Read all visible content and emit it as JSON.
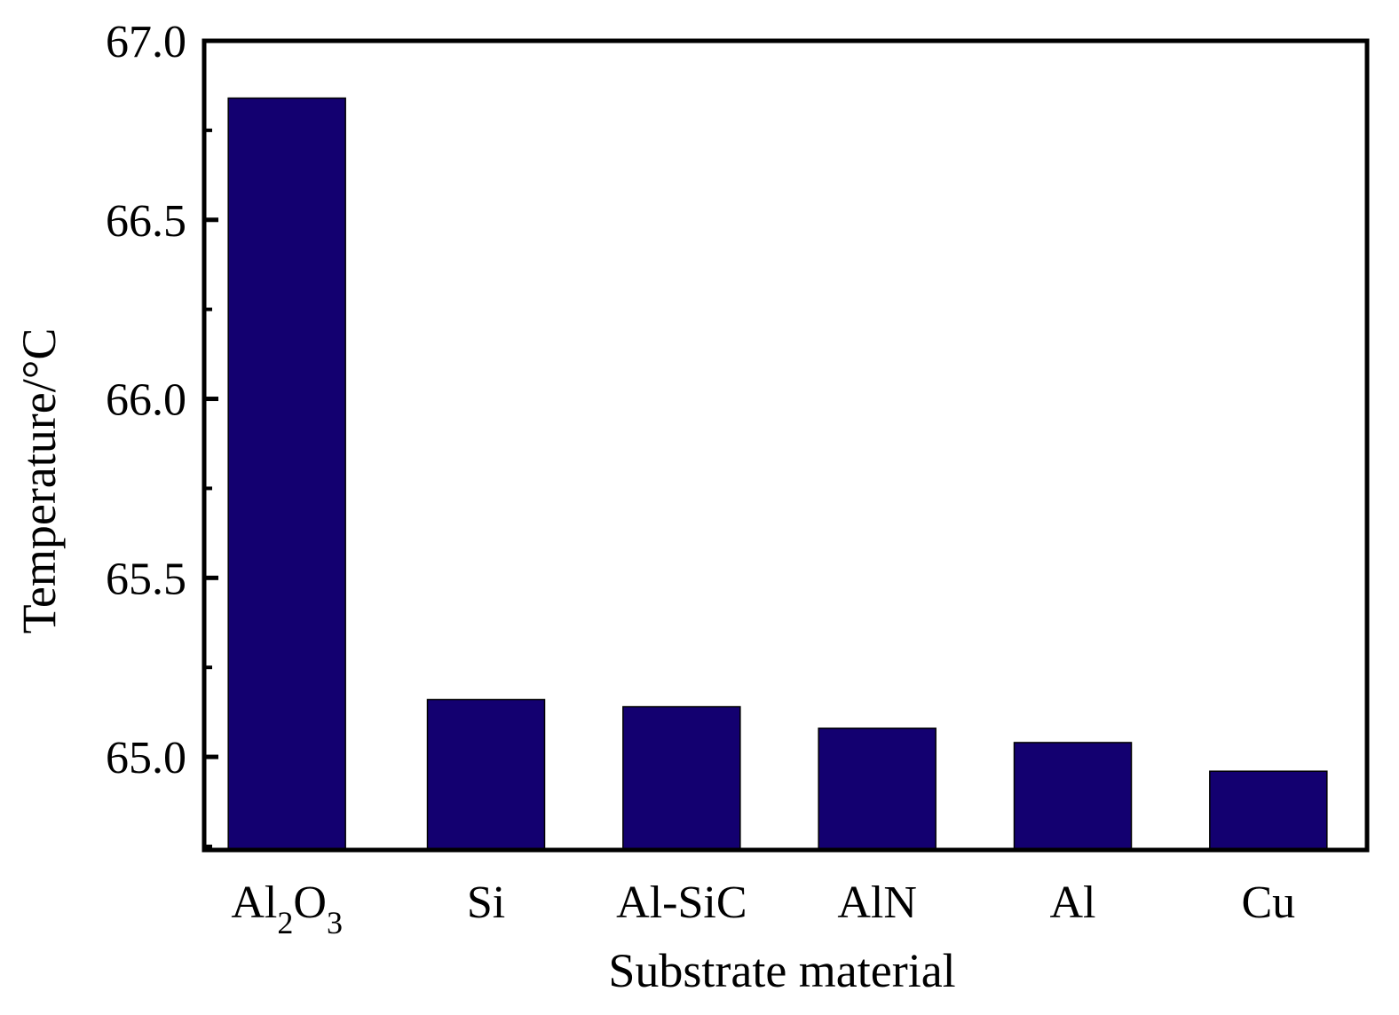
{
  "chart_data": {
    "type": "bar",
    "title": "",
    "xlabel": "Substrate material",
    "ylabel": "Temperature/°C",
    "ylim": [
      64.74,
      67.0
    ],
    "yticks_major": [
      "65.0",
      "65.5",
      "66.0",
      "66.5",
      "67.0"
    ],
    "yticks_major_values": [
      65.0,
      65.5,
      66.0,
      66.5,
      67.0
    ],
    "yticks_minor_values": [
      64.75,
      65.25,
      65.75,
      66.25,
      66.75
    ],
    "grid": false,
    "legend": "none",
    "categories": [
      {
        "label": "Al2O3",
        "base": "Al",
        "sub1": "2",
        "mid": "O",
        "sub2": "3"
      },
      {
        "label": "Si"
      },
      {
        "label": "Al-SiC"
      },
      {
        "label": "AlN"
      },
      {
        "label": "Al"
      },
      {
        "label": "Cu"
      }
    ],
    "values": [
      66.84,
      65.16,
      65.14,
      65.08,
      65.04,
      64.96
    ],
    "bar_color": "#130070",
    "axis_color": "#000000"
  }
}
